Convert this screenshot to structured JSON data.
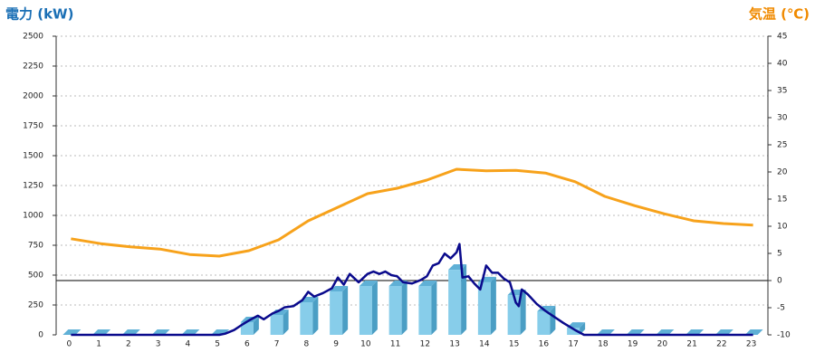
{
  "chart_data": {
    "type": "bar",
    "y_label": "電力 (kW)",
    "y2_label": "気温 (℃)",
    "categories": [
      "0",
      "1",
      "2",
      "3",
      "4",
      "5",
      "6",
      "7",
      "8",
      "9",
      "10",
      "11",
      "12",
      "13",
      "14",
      "15",
      "16",
      "17",
      "18",
      "19",
      "20",
      "21",
      "22",
      "23"
    ],
    "ylim": [
      0,
      2500
    ],
    "yticks": [
      0,
      250,
      500,
      750,
      1000,
      1250,
      1500,
      1750,
      2000,
      2250,
      2500
    ],
    "y2lim": [
      -10,
      45
    ],
    "y2ticks": [
      -10,
      -5,
      0,
      5,
      10,
      15,
      20,
      25,
      30,
      35,
      40,
      45
    ],
    "grid": true,
    "series": [
      {
        "type": "bar",
        "color": "#87cdea",
        "values": [
          0,
          0,
          0,
          0,
          0,
          0,
          106,
          167,
          273,
          364,
          409,
          409,
          409,
          545,
          440,
          333,
          197,
          60,
          0,
          0,
          0,
          0,
          0,
          0
        ]
      },
      {
        "type": "line",
        "color": "#0a0a8c",
        "x": [
          0,
          5,
          5.2,
          5.5,
          5.8,
          6,
          6.3,
          6.5,
          6.8,
          7,
          7.2,
          7.5,
          7.8,
          8,
          8.2,
          8.5,
          8.8,
          9,
          9.2,
          9.4,
          9.7,
          10,
          10.2,
          10.4,
          10.6,
          10.8,
          11,
          11.2,
          11.5,
          11.8,
          12,
          12.2,
          12.4,
          12.6,
          12.8,
          13,
          13.1,
          13.2,
          13.4,
          13.6,
          13.8,
          14,
          14.2,
          14.4,
          14.6,
          14.8,
          15,
          15.1,
          15.2,
          15.4,
          15.7,
          16,
          16.3,
          16.6,
          17,
          17.3,
          23
        ],
        "values": [
          0,
          0,
          10,
          40,
          90,
          120,
          160,
          130,
          180,
          200,
          230,
          240,
          290,
          360,
          320,
          350,
          390,
          480,
          420,
          510,
          440,
          510,
          530,
          510,
          530,
          500,
          490,
          440,
          430,
          460,
          490,
          580,
          600,
          680,
          640,
          690,
          760,
          480,
          490,
          430,
          380,
          580,
          520,
          520,
          470,
          440,
          270,
          240,
          380,
          340,
          260,
          200,
          150,
          100,
          40,
          0,
          0
        ]
      },
      {
        "type": "line",
        "axis": "y2",
        "color": "#f7a21b",
        "values": [
          7.7,
          6.8,
          6.2,
          5.8,
          4.8,
          4.5,
          5.5,
          7.5,
          11,
          13.5,
          16,
          17,
          18.5,
          20.5,
          20.2,
          20.3,
          19.8,
          18.2,
          15.5,
          13.8,
          12.3,
          11,
          10.5,
          10.2
        ]
      }
    ]
  }
}
